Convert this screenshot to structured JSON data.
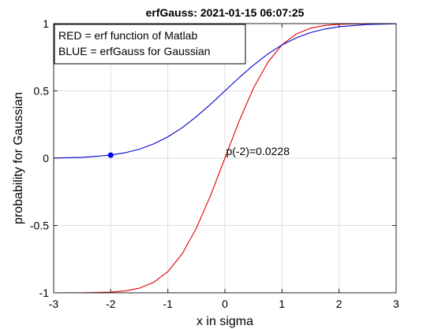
{
  "chart_data": {
    "type": "line",
    "title": "erfGauss: 2021-01-15 06:07:25",
    "xlabel": "x in sigma",
    "ylabel": "probability for Gaussian",
    "xlim": [
      -3,
      3
    ],
    "ylim": [
      -1,
      1
    ],
    "xticks": [
      -3,
      -2,
      -1,
      0,
      1,
      2,
      3
    ],
    "xtick_labels": [
      "-3",
      "-2",
      "-1",
      "0",
      "1",
      "2",
      "3"
    ],
    "yticks": [
      -1,
      -0.5,
      0,
      0.5,
      1
    ],
    "ytick_labels": [
      "-1",
      "-0.5",
      "0",
      "0.5",
      "1"
    ],
    "grid": true,
    "legend_placement": "top-left",
    "legend": [
      "RED = erf function of Matlab",
      "BLUE = erfGauss for Gaussian"
    ],
    "series": [
      {
        "color": "#e00000",
        "x": [
          -3,
          -2.5,
          -2,
          -1.75,
          -1.5,
          -1.25,
          -1,
          -0.75,
          -0.5,
          -0.25,
          0,
          0.25,
          0.5,
          0.75,
          1,
          1.25,
          1.5,
          1.75,
          2,
          2.5,
          3
        ],
        "y": [
          -1.0,
          -0.9996,
          -0.9953,
          -0.9867,
          -0.9661,
          -0.9229,
          -0.8427,
          -0.7112,
          -0.5205,
          -0.2763,
          0.0,
          0.2763,
          0.5205,
          0.7112,
          0.8427,
          0.9229,
          0.9661,
          0.9867,
          0.9953,
          0.9996,
          1.0
        ]
      },
      {
        "color": "#0000d0",
        "x": [
          -3,
          -2.5,
          -2,
          -1.75,
          -1.5,
          -1.25,
          -1,
          -0.75,
          -0.5,
          -0.25,
          0,
          0.25,
          0.5,
          0.75,
          1,
          1.25,
          1.5,
          1.75,
          2,
          2.5,
          3
        ],
        "y": [
          0.0013,
          0.0062,
          0.0228,
          0.0401,
          0.0668,
          0.1056,
          0.1587,
          0.2266,
          0.3085,
          0.4013,
          0.5,
          0.5987,
          0.6915,
          0.7734,
          0.8413,
          0.8944,
          0.9332,
          0.9599,
          0.9772,
          0.9938,
          0.9987
        ]
      }
    ],
    "marker": {
      "x": -2,
      "y": 0.0228,
      "color": "#0000ff"
    },
    "annotation": {
      "text": "p(-2)=0.0228",
      "x": 0.02,
      "y": 0.0228
    }
  }
}
